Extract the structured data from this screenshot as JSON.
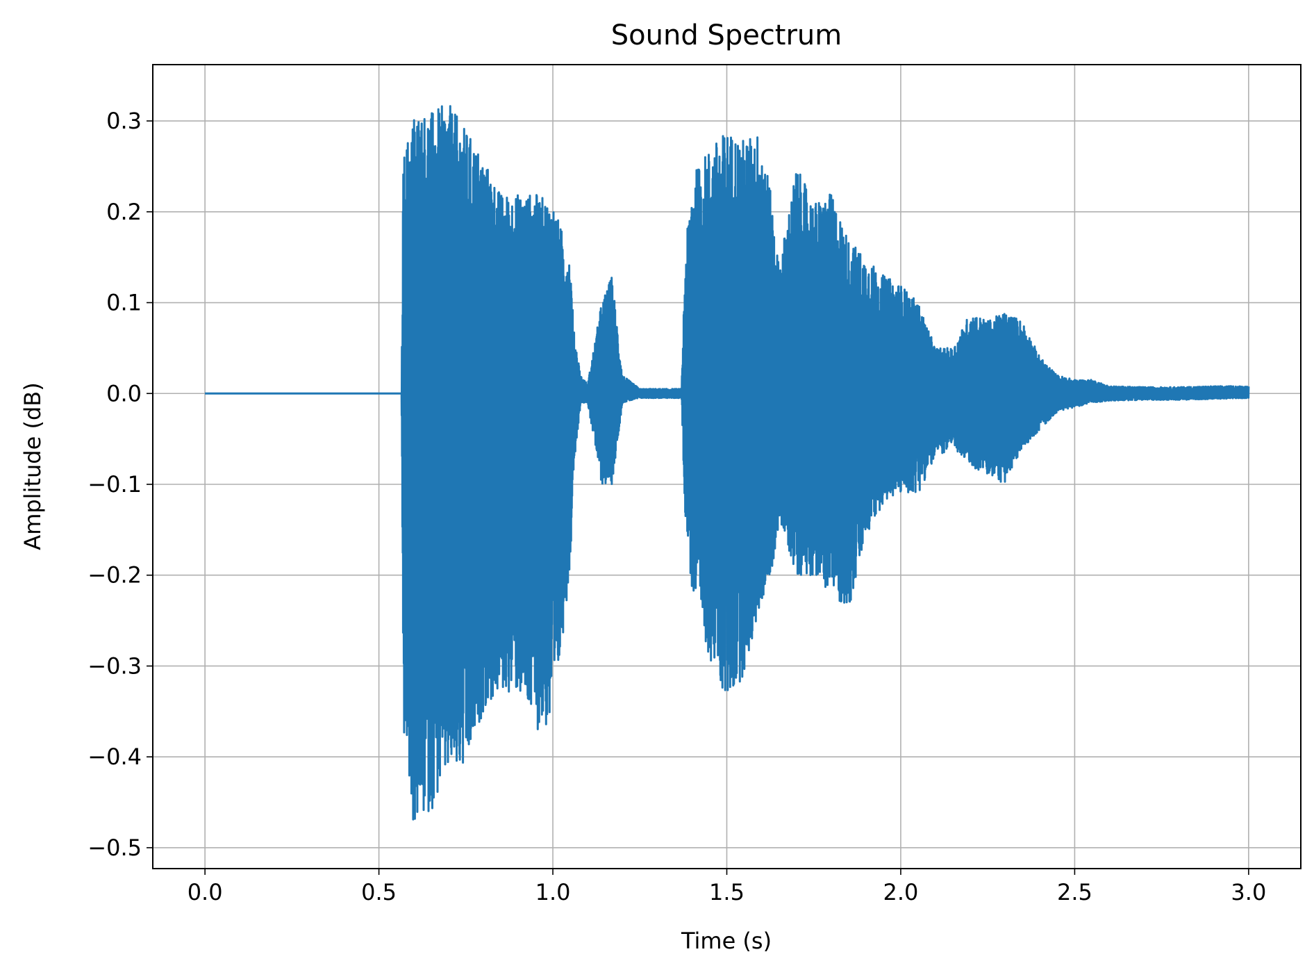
{
  "chart_data": {
    "type": "line",
    "title": "Sound Spectrum",
    "xlabel": "Time (s)",
    "ylabel": "Amplitude (dB)",
    "xlim": [
      -0.15,
      3.15
    ],
    "ylim": [
      -0.523,
      0.362
    ],
    "x_ticks": [
      0.0,
      0.5,
      1.0,
      1.5,
      2.0,
      2.5,
      3.0
    ],
    "x_tick_labels": [
      "0.0",
      "0.5",
      "1.0",
      "1.5",
      "2.0",
      "2.5",
      "3.0"
    ],
    "y_ticks": [
      0.3,
      0.2,
      0.1,
      0.0,
      -0.1,
      -0.2,
      -0.3,
      -0.4,
      -0.5
    ],
    "y_tick_labels": [
      "0.3",
      "0.2",
      "0.1",
      "0.0",
      "−0.1",
      "−0.2",
      "−0.3",
      "−0.4",
      "−0.5"
    ],
    "grid": true,
    "line_color": "#1f77b4",
    "envelope": {
      "t": [
        0.0,
        0.565,
        0.57,
        0.6,
        0.65,
        0.7,
        0.75,
        0.8,
        0.85,
        0.9,
        0.95,
        1.0,
        1.05,
        1.06,
        1.08,
        1.1,
        1.14,
        1.17,
        1.2,
        1.25,
        1.3,
        1.37,
        1.38,
        1.4,
        1.45,
        1.5,
        1.55,
        1.6,
        1.63,
        1.65,
        1.7,
        1.75,
        1.8,
        1.85,
        1.9,
        1.95,
        2.0,
        2.05,
        2.1,
        2.15,
        2.2,
        2.25,
        2.3,
        2.35,
        2.4,
        2.45,
        2.5,
        2.55,
        2.6,
        2.7,
        2.8,
        2.9,
        3.0
      ],
      "upper": [
        0.0,
        0.0,
        0.26,
        0.31,
        0.31,
        0.32,
        0.29,
        0.26,
        0.22,
        0.22,
        0.22,
        0.21,
        0.15,
        0.07,
        0.02,
        0.01,
        0.1,
        0.13,
        0.02,
        0.005,
        0.005,
        0.005,
        0.15,
        0.24,
        0.27,
        0.29,
        0.28,
        0.29,
        0.21,
        0.14,
        0.25,
        0.21,
        0.22,
        0.17,
        0.15,
        0.13,
        0.12,
        0.1,
        0.05,
        0.05,
        0.09,
        0.08,
        0.09,
        0.08,
        0.04,
        0.02,
        0.015,
        0.015,
        0.008,
        0.007,
        0.007,
        0.008,
        0.008
      ],
      "lower": [
        0.0,
        0.0,
        -0.37,
        -0.48,
        -0.46,
        -0.42,
        -0.42,
        -0.35,
        -0.33,
        -0.33,
        -0.37,
        -0.37,
        -0.19,
        -0.08,
        -0.01,
        -0.01,
        -0.1,
        -0.1,
        -0.01,
        -0.005,
        -0.005,
        -0.005,
        -0.13,
        -0.22,
        -0.29,
        -0.34,
        -0.31,
        -0.23,
        -0.2,
        -0.14,
        -0.2,
        -0.2,
        -0.22,
        -0.24,
        -0.16,
        -0.12,
        -0.11,
        -0.11,
        -0.07,
        -0.06,
        -0.08,
        -0.09,
        -0.1,
        -0.06,
        -0.04,
        -0.02,
        -0.015,
        -0.01,
        -0.008,
        -0.007,
        -0.007,
        -0.006,
        -0.005
      ]
    }
  }
}
